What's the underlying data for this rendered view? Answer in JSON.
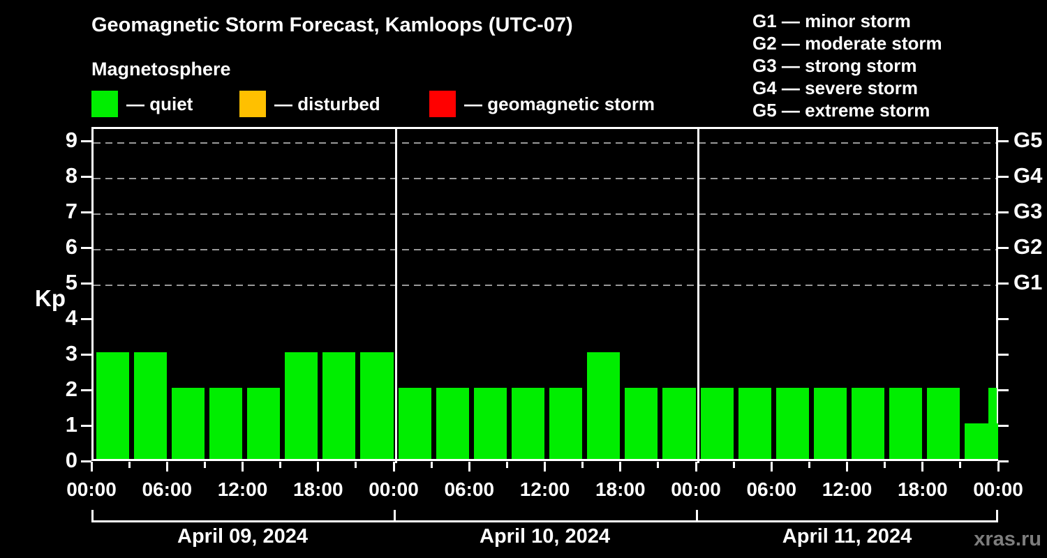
{
  "title": "Geomagnetic Storm Forecast, Kamloops (UTC-07)",
  "subtitle": "Magnetosphere",
  "status_legend": [
    {
      "name": "quiet",
      "label": "— quiet",
      "color": "#00ee00"
    },
    {
      "name": "disturbed",
      "label": "— disturbed",
      "color": "#ffc000"
    },
    {
      "name": "geomagnetic-storm",
      "label": "— geomagnetic storm",
      "color": "#ff0000"
    }
  ],
  "g_scale_legend": [
    "G1 — minor storm",
    "G2 — moderate storm",
    "G3 — strong storm",
    "G4 — severe storm",
    "G5 — extreme storm"
  ],
  "watermark": "xras.ru",
  "chart_data": {
    "type": "bar",
    "title": "Geomagnetic Storm Forecast, Kamloops (UTC-07)",
    "subtitle": "Magnetosphere",
    "ylabel": "Kp",
    "ylim": [
      0,
      9.4
    ],
    "yticks": [
      0,
      1,
      2,
      3,
      4,
      5,
      6,
      7,
      8,
      9
    ],
    "grid_levels": [
      5,
      6,
      7,
      8,
      9
    ],
    "grid_on": true,
    "right_axis_labels": [
      {
        "kp": 5,
        "label": "G1"
      },
      {
        "kp": 6,
        "label": "G2"
      },
      {
        "kp": 7,
        "label": "G3"
      },
      {
        "kp": 8,
        "label": "G4"
      },
      {
        "kp": 9,
        "label": "G5"
      }
    ],
    "bar_interval_hours": 3,
    "bar_color": "#00ee00",
    "days": [
      {
        "date": "April 09, 2024",
        "values": [
          3,
          3,
          2,
          2,
          2,
          3,
          3,
          3
        ]
      },
      {
        "date": "April 10, 2024",
        "values": [
          2,
          2,
          2,
          2,
          2,
          3,
          2,
          2
        ]
      },
      {
        "date": "April 11, 2024",
        "values": [
          2,
          2,
          2,
          2,
          2,
          2,
          2,
          1
        ]
      }
    ],
    "clipped_final_value": 2,
    "x_tick_labels": [
      "00:00",
      "06:00",
      "12:00",
      "18:00",
      "00:00",
      "06:00",
      "12:00",
      "18:00",
      "00:00",
      "06:00",
      "12:00",
      "18:00",
      "00:00"
    ],
    "legend_position": "top"
  }
}
